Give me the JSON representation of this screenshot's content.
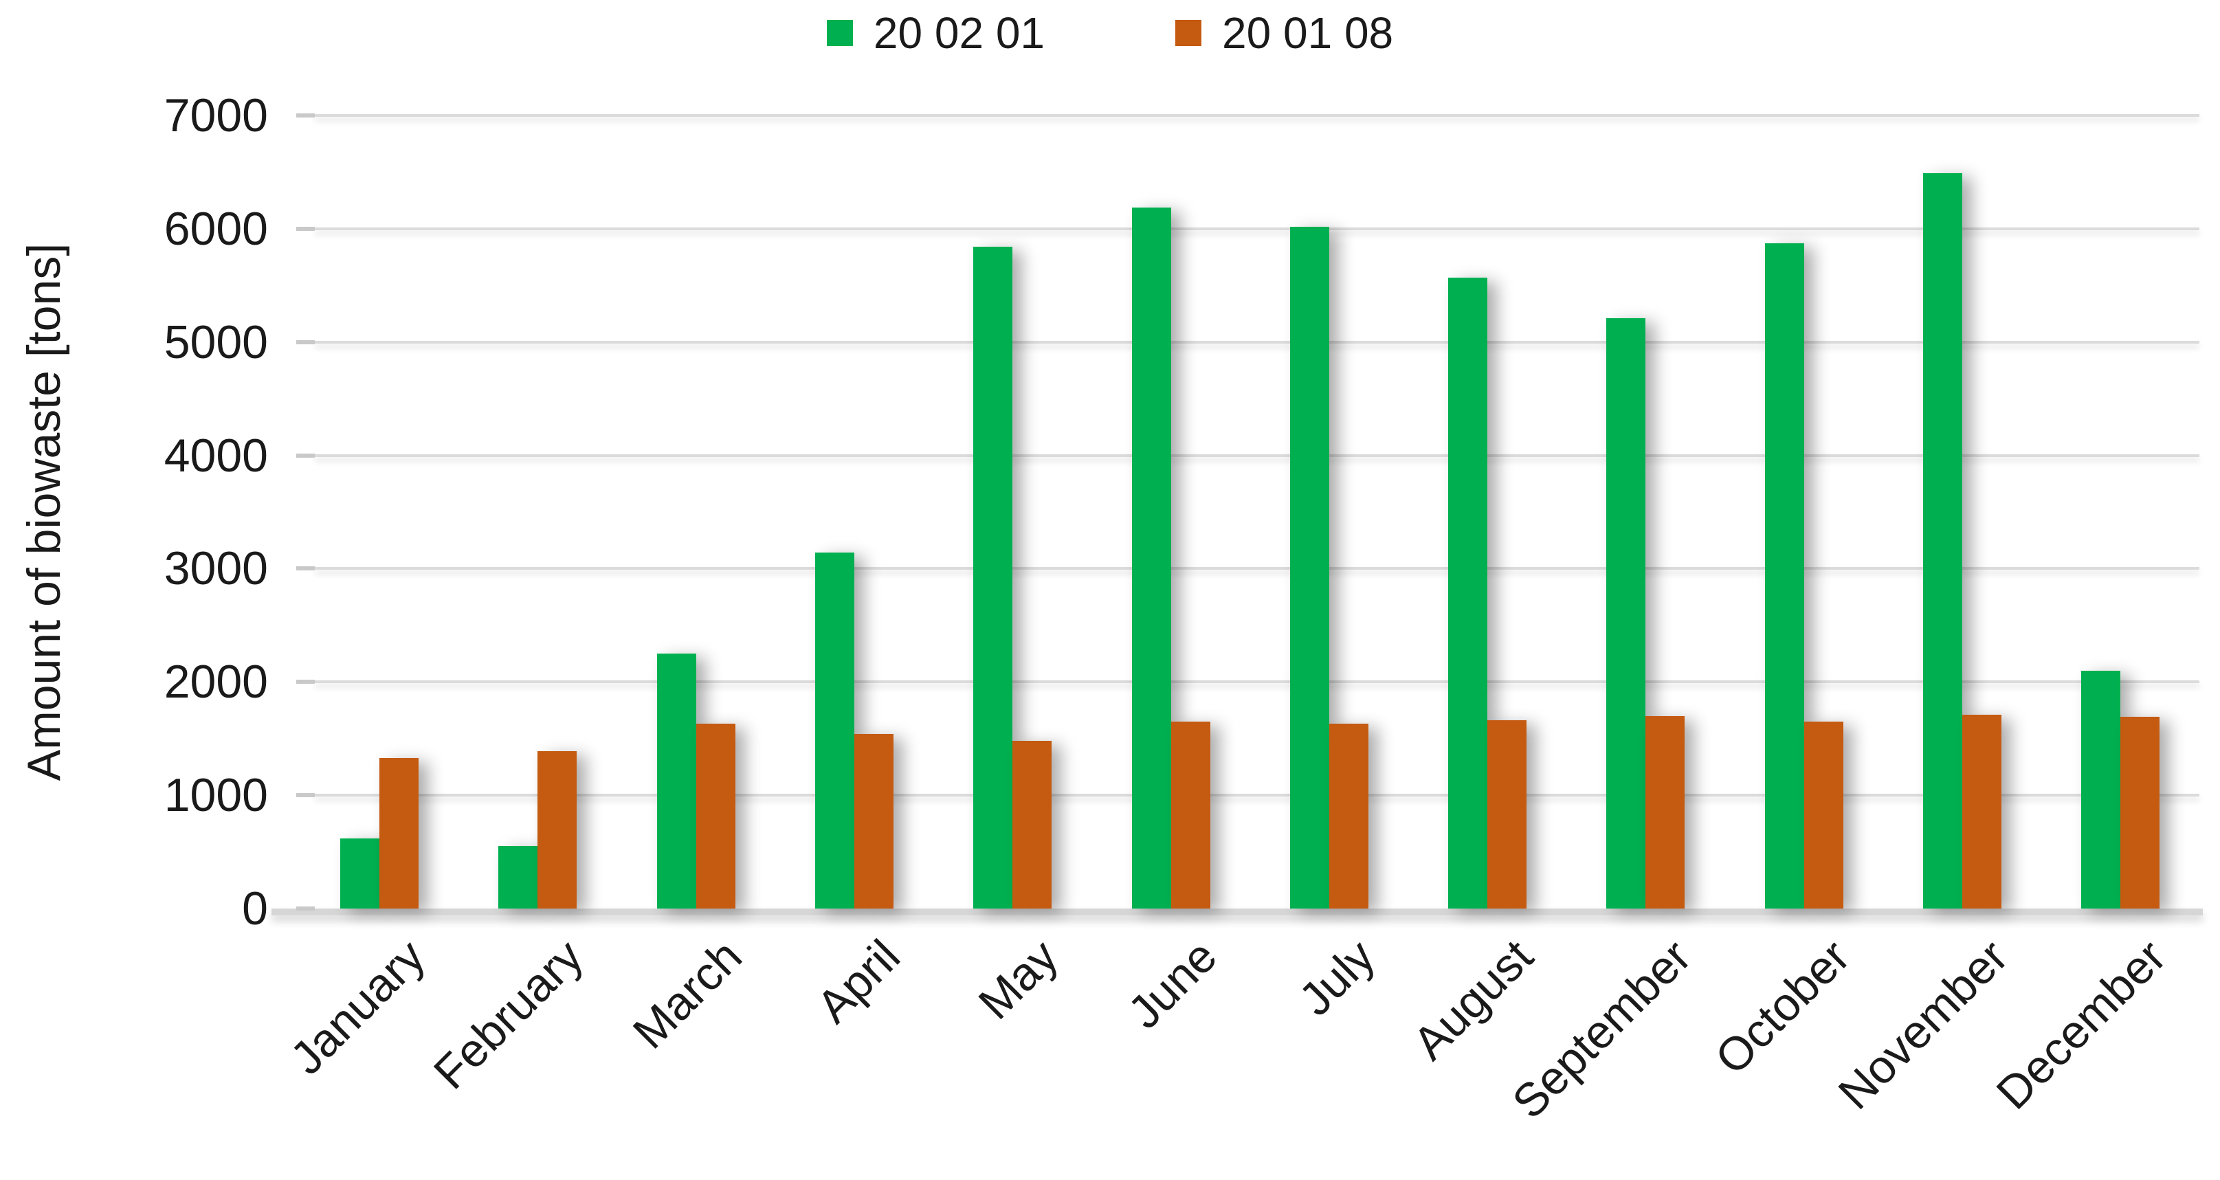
{
  "chart_data": {
    "type": "bar",
    "title": "",
    "categories": [
      "January",
      "February",
      "March",
      "April",
      "May",
      "June",
      "July",
      "August",
      "September",
      "October",
      "November",
      "December"
    ],
    "series": [
      {
        "name": "20 02 01",
        "color": "#00B050",
        "values": [
          620,
          550,
          2250,
          3140,
          5840,
          6190,
          6020,
          5570,
          5210,
          5870,
          6490,
          2100
        ]
      },
      {
        "name": "20 01 08",
        "color": "#C55A11",
        "values": [
          1330,
          1390,
          1630,
          1540,
          1480,
          1650,
          1630,
          1660,
          1700,
          1650,
          1710,
          1690
        ]
      }
    ],
    "xlabel": "",
    "ylabel": "Amount of biowaste [tons]",
    "ylim": [
      0,
      7000
    ],
    "yticks": [
      0,
      1000,
      2000,
      3000,
      4000,
      5000,
      6000,
      7000
    ],
    "grid": "horizontal",
    "legend_position": "top"
  },
  "style_colors": {
    "gridline": "#DBDBDB",
    "axis_line": "#D6D6D6",
    "tick_mark": "#C9C9C9",
    "text": "#1A1A1A"
  }
}
